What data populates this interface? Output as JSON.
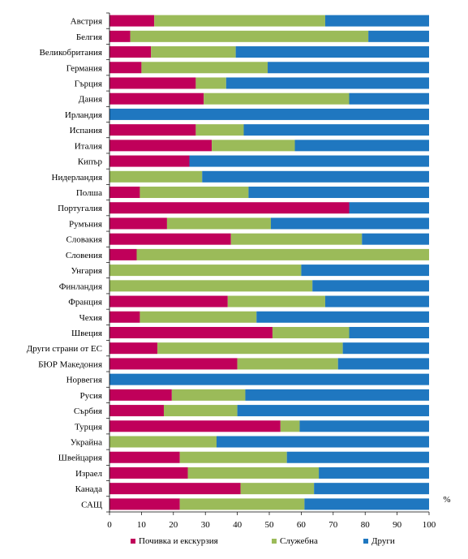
{
  "chart_data": {
    "type": "bar",
    "orientation": "horizontal",
    "stacked": true,
    "categories": [
      "Австрия",
      "Белгия",
      "Великобритания",
      "Германия",
      "Гърция",
      "Дания",
      "Ирландия",
      "Испания",
      "Италия",
      "Кипър",
      "Нидерландия",
      "Полша",
      "Португалия",
      "Румъния",
      "Словакия",
      "Словения",
      "Унгария",
      "Финландия",
      "Франция",
      "Чехия",
      "Швеция",
      "Други страни от ЕС",
      "БЮР Македония",
      "Норвегия",
      "Русия",
      "Сърбия",
      "Турция",
      "Украйна",
      "Швейцария",
      "Израел",
      "Канада",
      "САЩ"
    ],
    "series": [
      {
        "name": "Почивка и екскурзия",
        "color": "#c0005a",
        "values": [
          14,
          6.5,
          13,
          10,
          27,
          29.5,
          0,
          27,
          32,
          25,
          0,
          9.5,
          75,
          18,
          38,
          8.5,
          0,
          0,
          37,
          9.5,
          51,
          15,
          40,
          0,
          19.5,
          17,
          53.5,
          0,
          22,
          24.5,
          41,
          22
        ]
      },
      {
        "name": "Служебна",
        "color": "#9bbb59",
        "values": [
          53.5,
          74.5,
          26.5,
          39.5,
          9.5,
          45.5,
          0,
          15,
          26,
          0,
          29,
          34,
          0,
          32.5,
          41,
          91.5,
          60,
          63.5,
          30.5,
          36.5,
          24,
          58,
          31.5,
          0,
          23,
          23,
          6,
          33.5,
          33.5,
          41,
          23,
          39
        ]
      },
      {
        "name": "Други",
        "color": "#1f77c0",
        "values": [
          32.5,
          19,
          60.5,
          50.5,
          63.5,
          25,
          100,
          58,
          42,
          75,
          71,
          56.5,
          25,
          49.5,
          21,
          0,
          40,
          36.5,
          32.5,
          54,
          25,
          27,
          28.5,
          100,
          57.5,
          60,
          40.5,
          66.5,
          44.5,
          34.5,
          36,
          39
        ]
      }
    ],
    "xlim": [
      0,
      100
    ],
    "xticks": [
      "0",
      "10",
      "20",
      "30",
      "40",
      "50",
      "60",
      "70",
      "80",
      "90",
      "100"
    ],
    "unit_label": "%",
    "legend_position": "bottom",
    "grid": false
  }
}
